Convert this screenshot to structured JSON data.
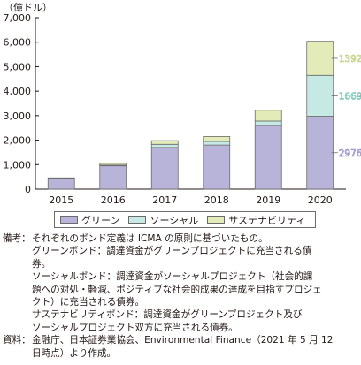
{
  "chart_data": {
    "type": "bar",
    "stacked": true,
    "unit_label": "（億ドル）",
    "categories": [
      "2015",
      "2016",
      "2017",
      "2018",
      "2019",
      "2020"
    ],
    "series": [
      {
        "name": "グリーン",
        "color": "#b8b3d9",
        "values": [
          420,
          950,
          1700,
          1800,
          2600,
          2976
        ]
      },
      {
        "name": "ソーシャル",
        "color": "#c6e9e3",
        "values": [
          10,
          30,
          130,
          150,
          180,
          1669
        ]
      },
      {
        "name": "サステナビリティ",
        "color": "#e3ecb9",
        "values": [
          30,
          70,
          150,
          200,
          440,
          1392
        ]
      }
    ],
    "ylim": [
      0,
      7000
    ],
    "yticks": [
      "0",
      "1,000",
      "2,000",
      "3,000",
      "4,000",
      "5,000",
      "6,000",
      "7,000"
    ],
    "callouts": [
      "1392",
      "1669",
      "2976"
    ],
    "grid": false,
    "legend_position": "bottom"
  },
  "notes": {
    "biko_head": "備考：",
    "biko_lines": [
      "それぞれのボンド定義は ICMA の原則に基づいたもの。",
      "グリーンボンド：調達資金がグリーンプロジェクトに充当される債",
      "券。",
      "ソーシャルボンド：調達資金がソーシャルプロジェクト（社会的課",
      "題への対処・軽減、ポジティブな社会的成果の達成を目指すプロジェ",
      "クト）に充当される債券。",
      "サステナビリティボンド：調達資金がグリーンプロジェクト及び",
      "ソーシャルプロジェクト双方に充当される債券。"
    ],
    "shiryo_head": "資料：",
    "shiryo_lines": [
      "金融庁、日本証券業協会、Environmental Finance（2021 年 5 月 12",
      "日時点）より作成。"
    ]
  }
}
